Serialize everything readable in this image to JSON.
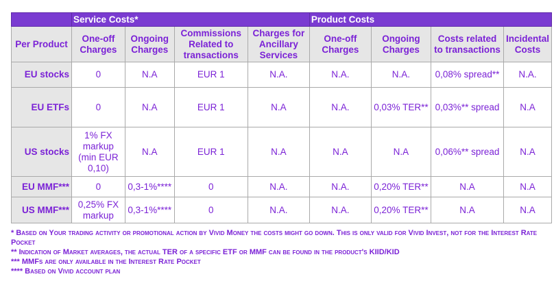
{
  "group_headers": {
    "service": "Service Costs*",
    "product": "Product Costs"
  },
  "columns": [
    "Per Product",
    "One-off Charges",
    "Ongoing Charges",
    "Commissions Related to transactions",
    "Charges for Ancillary Services",
    "One-off Charges",
    "Ongoing Charges",
    "Costs related to transactions",
    "Incidental Costs"
  ],
  "rows": [
    {
      "product": "EU stocks",
      "cells": [
        "0",
        "N.A",
        "EUR 1",
        "N.A.",
        "N.A.",
        "N.A.",
        "0,08% spread**",
        "N.A."
      ]
    },
    {
      "product": "EU ETFs",
      "cells": [
        "0",
        "N.A",
        "EUR 1",
        "N.A",
        "N.A.",
        "0,03% TER**",
        "0,03%** spread",
        "N.A"
      ]
    },
    {
      "product": "US stocks",
      "cells": [
        "1% FX markup (min EUR 0,10)",
        "N.A",
        "EUR 1",
        "N.A",
        "N.A",
        "N.A",
        "0,06%** spread",
        "N.A"
      ]
    },
    {
      "product": "EU MMF***",
      "cells": [
        "0",
        "0,3-1%****",
        "0",
        "N.A.",
        "N.A.",
        "0,20% TER**",
        "N.A",
        "N.A"
      ]
    },
    {
      "product": "US MMF***",
      "cells": [
        "0,25% FX markup",
        "0,3-1%****",
        "0",
        "N.A.",
        "N.A.",
        "0,20% TER**",
        "N.A",
        "N.A"
      ]
    }
  ],
  "notes": [
    "* Based on Your trading activity or promotional action by Vivid Money the costs might go down. This is only valid for Vivid Invest, not for the Interest Rate Pocket",
    "** Indication of Market averages, the actual TER of a specific ETF or MMF can be found in the product's KIID/KID",
    "*** MMFs are only available in the Interest Rate Pocket",
    "**** Based on Vivid account plan"
  ]
}
